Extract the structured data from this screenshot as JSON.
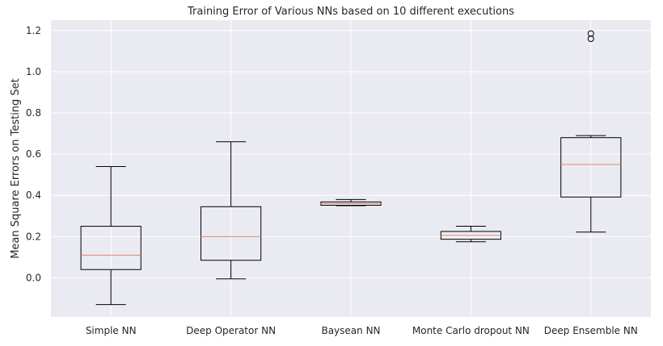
{
  "chart_data": {
    "type": "box",
    "title": "Training Error of Various NNs based on 10 different executions",
    "xlabel": "",
    "ylabel": "Mean Square Errors on Testing Set",
    "ylim": [
      -0.19,
      1.25
    ],
    "yticks": [
      0.0,
      0.2,
      0.4,
      0.6,
      0.8,
      1.0,
      1.2
    ],
    "ytick_labels": [
      "0.0",
      "0.2",
      "0.4",
      "0.6",
      "0.8",
      "1.0",
      "1.2"
    ],
    "grid": true,
    "categories": [
      "Simple NN",
      "Deep Operator NN",
      "Baysean NN",
      "Monte Carlo dropout NN",
      "Deep Ensemble NN"
    ],
    "boxes": [
      {
        "whisker_low": -0.13,
        "q1": 0.04,
        "median": 0.11,
        "q3": 0.25,
        "whisker_high": 0.54,
        "outliers": []
      },
      {
        "whisker_low": -0.005,
        "q1": 0.085,
        "median": 0.2,
        "q3": 0.345,
        "whisker_high": 0.66,
        "outliers": []
      },
      {
        "whisker_low": 0.35,
        "q1": 0.352,
        "median": 0.36,
        "q3": 0.368,
        "whisker_high": 0.38,
        "outliers": []
      },
      {
        "whisker_low": 0.175,
        "q1": 0.187,
        "median": 0.205,
        "q3": 0.225,
        "whisker_high": 0.25,
        "outliers": []
      },
      {
        "whisker_low": 0.222,
        "q1": 0.392,
        "median": 0.55,
        "q3": 0.68,
        "whisker_high": 0.69,
        "outliers": [
          1.16,
          1.185
        ]
      }
    ],
    "colors": {
      "background": "#eaeaf2",
      "grid": "#ffffff",
      "box": "#000000",
      "median": "#e08a6a"
    }
  }
}
